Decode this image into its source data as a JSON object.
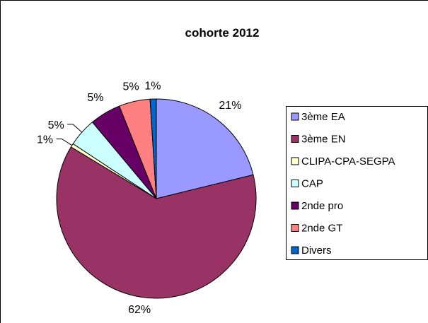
{
  "chart_data": {
    "type": "pie",
    "title": "cohorte 2012",
    "legend_position": "right",
    "slices": [
      {
        "label": "3ème EA",
        "value": 21,
        "display": "21%",
        "color": "#9999ff"
      },
      {
        "label": "3ème EN",
        "value": 62,
        "display": "62%",
        "color": "#993366"
      },
      {
        "label": "CLIPA-CPA-SEGPA",
        "value": 0.6,
        "display": "1%",
        "color": "#ffffcc"
      },
      {
        "label": "CAP",
        "value": 4.6,
        "display": "5%",
        "color": "#ccffff"
      },
      {
        "label": "2nde pro",
        "value": 5,
        "display": "5%",
        "color": "#660066"
      },
      {
        "label": "2nde GT",
        "value": 5,
        "display": "5%",
        "color": "#ff8080"
      },
      {
        "label": "Divers",
        "value": 1,
        "display": "1%",
        "color": "#0066cc"
      }
    ]
  }
}
